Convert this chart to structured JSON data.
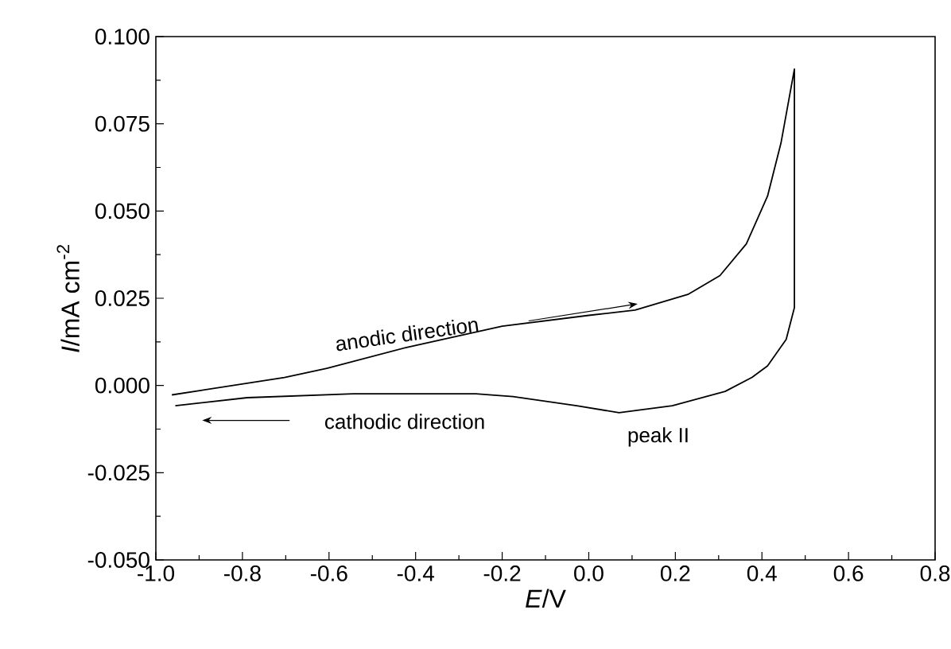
{
  "chart_data": {
    "type": "line",
    "xlabel": "*E*/V",
    "ylabel": "*I*/mA cm$^{-2}$",
    "xlim": [
      -1.0,
      0.8
    ],
    "xticks": [
      {
        "value": -1.0,
        "label": "-1.0"
      },
      {
        "value": -0.8,
        "label": "-0.8"
      },
      {
        "value": -0.6,
        "label": "-0.6"
      },
      {
        "value": -0.4,
        "label": "-0.4"
      },
      {
        "value": -0.2,
        "label": "-0.2"
      },
      {
        "value": 0.0,
        "label": "0.0"
      },
      {
        "value": 0.2,
        "label": "0.2"
      },
      {
        "value": 0.4,
        "label": "0.4"
      },
      {
        "value": 0.6,
        "label": "0.6"
      },
      {
        "value": 0.8,
        "label": "0.8"
      }
    ],
    "ylim": [
      -0.05,
      0.1
    ],
    "yticks": [
      {
        "value": -0.05,
        "label": "-0.050"
      },
      {
        "value": -0.025,
        "label": "-0.025"
      },
      {
        "value": 0.0,
        "label": "0.000"
      },
      {
        "value": 0.025,
        "label": "0.025"
      },
      {
        "value": 0.05,
        "label": "0.050"
      },
      {
        "value": 0.075,
        "label": "0.075"
      },
      {
        "value": 0.1,
        "label": "0.100"
      }
    ],
    "series": [
      {
        "color": "#000000",
        "x": [
          -0.963,
          -0.703,
          -0.605,
          -0.421,
          -0.2,
          0.0,
          0.107,
          0.229,
          0.303,
          0.364,
          0.413,
          0.444,
          0.475,
          0.475,
          0.456,
          0.413,
          0.377,
          0.315,
          0.193,
          0.07,
          -0.028,
          -0.175,
          -0.261,
          -0.544,
          -0.789,
          -0.955
        ],
        "values": [
          -0.0027,
          0.0023,
          0.0049,
          0.0109,
          0.017,
          0.0201,
          0.0216,
          0.0261,
          0.0315,
          0.0406,
          0.0543,
          0.0695,
          0.0907,
          0.0223,
          0.0132,
          0.0056,
          0.0023,
          -0.0017,
          -0.0058,
          -0.0078,
          -0.0058,
          -0.0032,
          -0.0024,
          -0.0024,
          -0.0035,
          -0.0058
        ]
      }
    ],
    "annotations": [
      "anodic direction",
      "cathodic direction",
      {
        "text": "peak II",
        "x": 0.07,
        "y": -0.0078
      }
    ],
    "marker": "none",
    "line_style": "solid"
  }
}
